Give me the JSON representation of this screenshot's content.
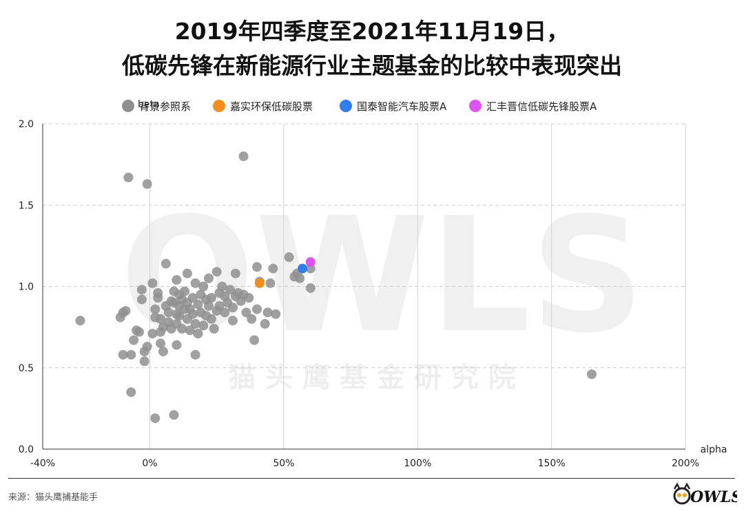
{
  "title_line1": "2019年四季度至2021年11月19日，",
  "title_line2": "低碳先锋在新能源行业主题基金的比较中表现突出",
  "source": "来源：猫头鹰捕基能手",
  "watermark": {
    "brand": "OWLS",
    "text": "猫 头 鹰 基 金 研 究 院"
  },
  "logo_text": "OWLS",
  "chart_data": {
    "type": "scatter",
    "xlabel": "alpha",
    "ylabel": "beta",
    "xlim": [
      -40,
      200
    ],
    "ylim": [
      0,
      2.0
    ],
    "x_ticks": [
      -40,
      0,
      50,
      100,
      150,
      200
    ],
    "x_tick_labels": [
      "-40%",
      "0%",
      "50%",
      "100%",
      "150%",
      "200%"
    ],
    "y_ticks": [
      0.0,
      0.5,
      1.0,
      1.5,
      2.0
    ],
    "y_tick_labels": [
      "0.0",
      "0.5",
      "1.0",
      "1.5",
      "2.0"
    ],
    "grid": true,
    "legend_position": "top",
    "series": [
      {
        "name": "背景参照系",
        "color": "#8f8f8f",
        "points": [
          [
            -26,
            0.79
          ],
          [
            -11,
            0.81
          ],
          [
            -10,
            0.84
          ],
          [
            -9,
            0.85
          ],
          [
            -10,
            0.58
          ],
          [
            -8,
            1.67
          ],
          [
            -7,
            0.35
          ],
          [
            -6,
            0.67
          ],
          [
            -7,
            0.58
          ],
          [
            -5,
            0.73
          ],
          [
            -4,
            0.72
          ],
          [
            -3,
            0.98
          ],
          [
            -3,
            0.92
          ],
          [
            -2,
            0.6
          ],
          [
            -2,
            0.54
          ],
          [
            -1,
            0.63
          ],
          [
            -1,
            1.63
          ],
          [
            1,
            1.02
          ],
          [
            1,
            0.71
          ],
          [
            2,
            0.81
          ],
          [
            2,
            0.86
          ],
          [
            2,
            0.19
          ],
          [
            3,
            0.93
          ],
          [
            3,
            0.96
          ],
          [
            4,
            0.8
          ],
          [
            4,
            0.72
          ],
          [
            4,
            0.65
          ],
          [
            5,
            0.6
          ],
          [
            5,
            0.75
          ],
          [
            6,
            1.14
          ],
          [
            6,
            0.88
          ],
          [
            7,
            0.84
          ],
          [
            7,
            0.78
          ],
          [
            8,
            0.91
          ],
          [
            8,
            0.74
          ],
          [
            9,
            0.97
          ],
          [
            9,
            0.9
          ],
          [
            9,
            0.21
          ],
          [
            10,
            1.04
          ],
          [
            10,
            0.83
          ],
          [
            10,
            0.77
          ],
          [
            10,
            0.64
          ],
          [
            11,
            0.95
          ],
          [
            11,
            0.88
          ],
          [
            11,
            0.82
          ],
          [
            12,
            0.74
          ],
          [
            12,
            0.92
          ],
          [
            13,
            0.97
          ],
          [
            13,
            0.86
          ],
          [
            14,
            1.08
          ],
          [
            14,
            0.9
          ],
          [
            14,
            0.8
          ],
          [
            15,
            0.73
          ],
          [
            15,
            0.86
          ],
          [
            16,
            0.93
          ],
          [
            16,
            0.83
          ],
          [
            17,
            0.58
          ],
          [
            17,
            0.77
          ],
          [
            17,
            1.02
          ],
          [
            18,
            0.89
          ],
          [
            18,
            0.71
          ],
          [
            19,
            0.95
          ],
          [
            19,
            0.84
          ],
          [
            20,
            0.76
          ],
          [
            20,
            1.0
          ],
          [
            21,
            0.92
          ],
          [
            21,
            0.82
          ],
          [
            22,
            1.05
          ],
          [
            22,
            0.88
          ],
          [
            23,
            0.8
          ],
          [
            23,
            0.93
          ],
          [
            24,
            0.74
          ],
          [
            25,
            0.85
          ],
          [
            25,
            1.09
          ],
          [
            26,
            0.96
          ],
          [
            26,
            0.88
          ],
          [
            27,
            1.0
          ],
          [
            28,
            0.94
          ],
          [
            28,
            0.84
          ],
          [
            29,
            0.9
          ],
          [
            30,
            0.98
          ],
          [
            31,
            0.79
          ],
          [
            31,
            0.87
          ],
          [
            32,
            1.08
          ],
          [
            32,
            0.94
          ],
          [
            33,
            0.96
          ],
          [
            34,
            0.91
          ],
          [
            35,
            0.95
          ],
          [
            35,
            1.8
          ],
          [
            36,
            0.84
          ],
          [
            37,
            0.93
          ],
          [
            38,
            0.8
          ],
          [
            39,
            0.67
          ],
          [
            40,
            0.86
          ],
          [
            40,
            1.12
          ],
          [
            41,
            1.03
          ],
          [
            43,
            0.77
          ],
          [
            44,
            0.84
          ],
          [
            45,
            1.02
          ],
          [
            46,
            1.11
          ],
          [
            47,
            0.83
          ],
          [
            52,
            1.18
          ],
          [
            54,
            1.06
          ],
          [
            55,
            1.08
          ],
          [
            56,
            1.05
          ],
          [
            60,
            0.99
          ],
          [
            60,
            1.11
          ],
          [
            165,
            0.46
          ]
        ]
      },
      {
        "name": "嘉实环保低碳股票",
        "color": "#f28e1c",
        "points": [
          [
            41,
            1.02
          ]
        ]
      },
      {
        "name": "国泰智能汽车股票A",
        "color": "#2f7ef0",
        "points": [
          [
            57,
            1.11
          ]
        ]
      },
      {
        "name": "汇丰晋信低碳先锋股票A",
        "color": "#e052f0",
        "points": [
          [
            60,
            1.15
          ]
        ]
      }
    ]
  }
}
